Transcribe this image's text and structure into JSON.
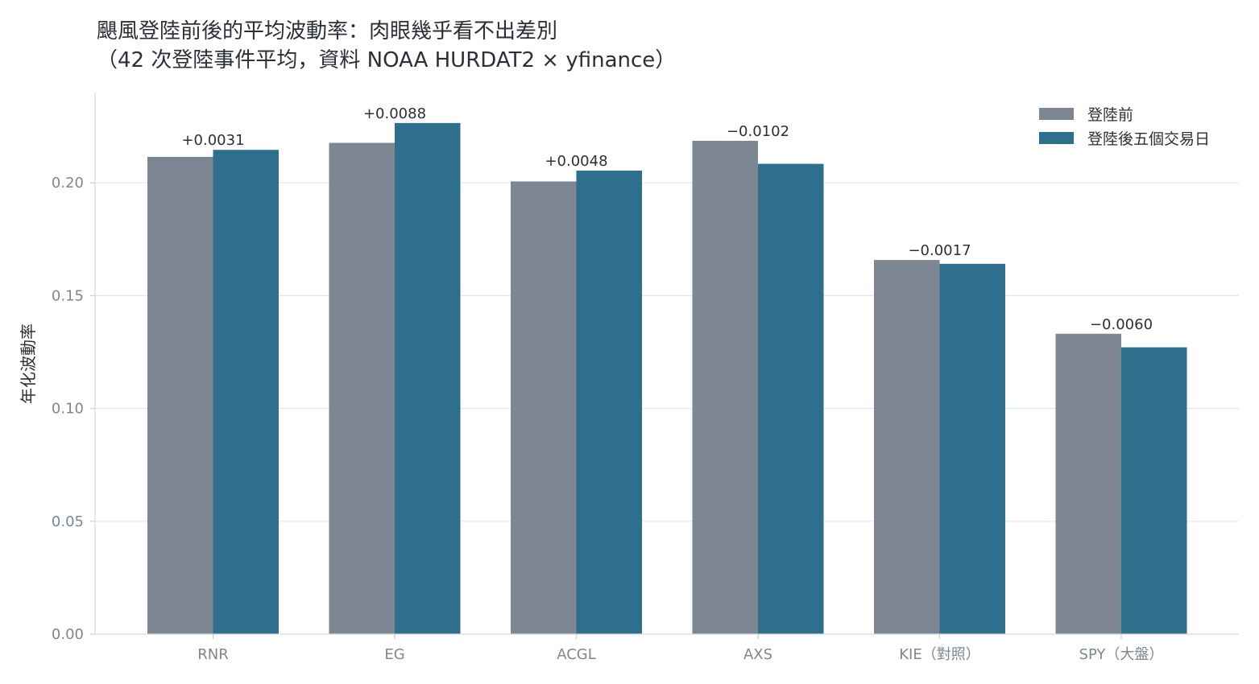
{
  "chart_data": {
    "type": "bar",
    "title": "颶風登陸前後的平均波動率：肉眼幾乎看不出差別",
    "subtitle": "（42 次登陸事件平均，資料 NOAA HURDAT2 × yfinance）",
    "xlabel": "",
    "ylabel": "年化波動率",
    "ylim": [
      0,
      0.24
    ],
    "yticks": [
      "0.00",
      "0.05",
      "0.10",
      "0.15",
      "0.20"
    ],
    "grid": "y",
    "legend_position": "top-right",
    "categories": [
      "RNR",
      "EG",
      "ACGL",
      "AXS",
      "KIE（對照）",
      "SPY（大盤）"
    ],
    "series": [
      {
        "name": "登陸前",
        "color": "#7d8794",
        "values": [
          0.2115,
          0.2177,
          0.2006,
          0.2186,
          0.1658,
          0.1331
        ]
      },
      {
        "name": "登陸後五個交易日",
        "color": "#2e6f8e",
        "values": [
          0.2146,
          0.2265,
          0.2054,
          0.2084,
          0.1641,
          0.1271
        ]
      }
    ],
    "data_labels": [
      "+0.0031",
      "+0.0088",
      "+0.0048",
      "−0.0102",
      "−0.0017",
      "−0.0060"
    ]
  }
}
